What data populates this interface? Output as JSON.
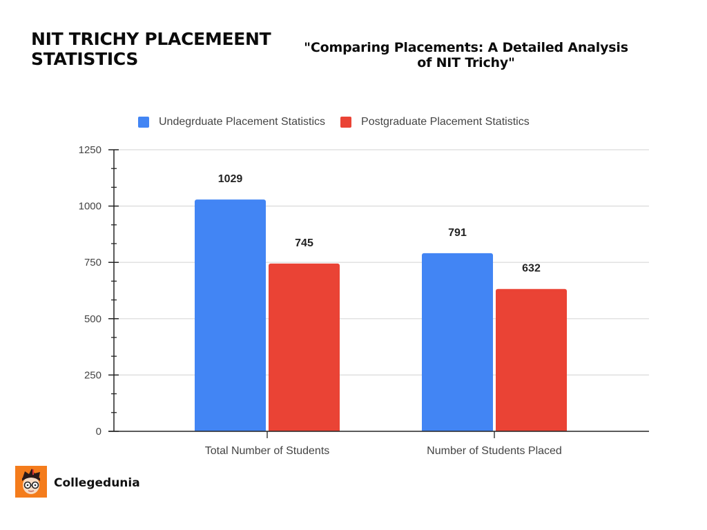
{
  "header": {
    "main_title": "NIT TRICHY PLACEMEENT STATISTICS",
    "subtitle_line1": "\"Comparing Placements: A Detailed Analysis",
    "subtitle_line2": "of  NIT Trichy\""
  },
  "brand": {
    "name": "Collegedunia",
    "logo_icon": "cartoon-student-face-icon",
    "logo_color": "#f47c1c"
  },
  "colors": {
    "undergraduate": "#4285f4",
    "postgraduate": "#ea4335",
    "gridline": "#d9d9d9",
    "axis": "#222222"
  },
  "chart_data": {
    "type": "bar",
    "title": "",
    "categories": [
      "Total Number of Students",
      "Number of Students Placed"
    ],
    "series": [
      {
        "name": "Undegrduate Placement Statistics",
        "values": [
          1029,
          791
        ],
        "color": "#4285f4"
      },
      {
        "name": "Postgraduate Placement Statistics",
        "values": [
          745,
          632
        ],
        "color": "#ea4335"
      }
    ],
    "xlabel": "",
    "ylabel": "",
    "ylim": [
      0,
      1250
    ],
    "yticks": [
      0,
      250,
      500,
      750,
      1000,
      1250
    ],
    "ytick_labels": [
      "0",
      "250",
      "500",
      "750",
      "1000",
      "1250"
    ],
    "minor_ticks_per_interval": 2,
    "grid": true,
    "legend_position": "top",
    "data_labels": true
  }
}
